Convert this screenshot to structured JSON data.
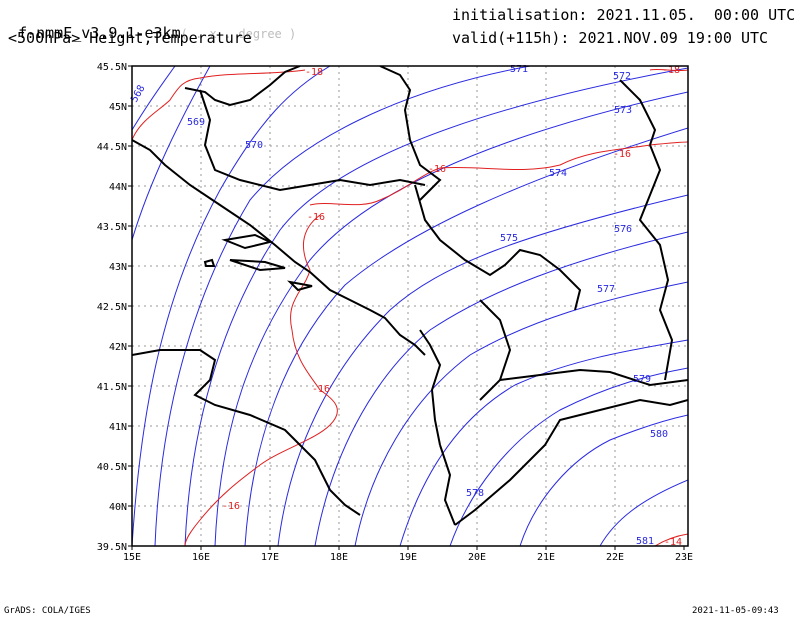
{
  "header": {
    "model_label": "f-nmmE_v3.9.1-e3km",
    "model_suffix": "( . x . degree )",
    "variables": "<500hPa> Height,Temperature",
    "initialisation": "initialisation: 2021.11.05.  00:00 UTC",
    "valid": "valid(+115h): 2021.NOV.09 19:00 UTC"
  },
  "axes": {
    "x_ticks": [
      "15E",
      "16E",
      "17E",
      "18E",
      "19E",
      "20E",
      "21E",
      "22E",
      "23E"
    ],
    "y_ticks": [
      "45.5N",
      "45N",
      "44.5N",
      "44N",
      "43.5N",
      "43N",
      "42.5N",
      "42N",
      "41.5N",
      "41N",
      "40.5N",
      "40N",
      "39.5N"
    ]
  },
  "height_labels": [
    "568",
    "569",
    "570",
    "571",
    "572",
    "573",
    "574",
    "575",
    "576",
    "577",
    "579",
    "580",
    "578",
    "581"
  ],
  "temperature_labels": [
    "-18",
    "-18",
    "-16",
    "-16",
    "-16",
    "-16",
    "-16",
    "-14"
  ],
  "colors": {
    "height": "#2a2ae0",
    "temperature": "#e02020",
    "border": "#000000",
    "grid": "#9a9a9a"
  },
  "footer": {
    "left": "GrADS: COLA/IGES",
    "right": "2021-11-05-09:43"
  }
}
